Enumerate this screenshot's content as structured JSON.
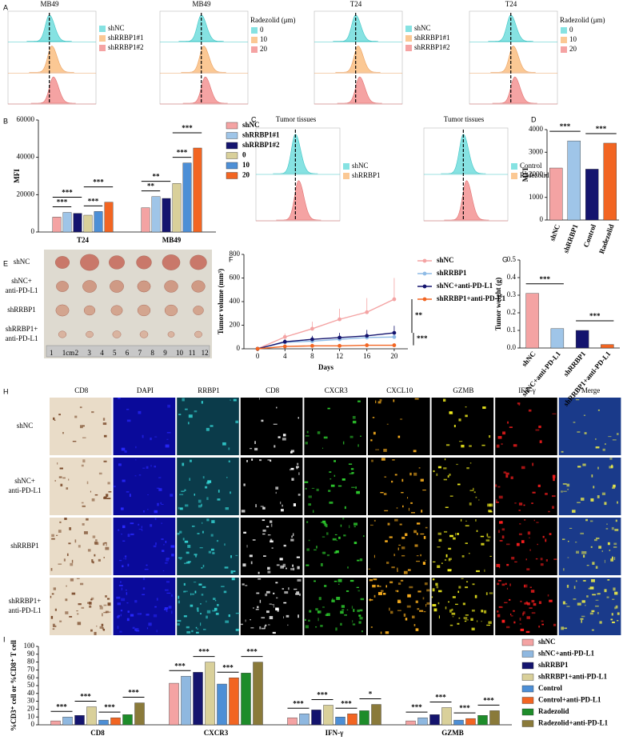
{
  "panel_labels": [
    "A",
    "B",
    "C",
    "D",
    "E",
    "F",
    "G",
    "H",
    "I"
  ],
  "flow_panels": [
    {
      "title": "MB49",
      "legend": [
        "shNC",
        "shRRBP1#1",
        "shRRBP1#2"
      ]
    },
    {
      "title": "MB49",
      "legend_title": "Radezolid (μm)",
      "legend": [
        "0",
        "10",
        "20"
      ]
    },
    {
      "title": "T24",
      "legend": [
        "shNC",
        "shRRBP1#1",
        "shRRBP1#2"
      ]
    },
    {
      "title": "T24",
      "legend_title": "Radezolid (μm)",
      "legend": [
        "0",
        "10",
        "20"
      ]
    }
  ],
  "tissue_panels": [
    {
      "title": "Tumor tissues",
      "legend": [
        "shNC",
        "shRRBP1"
      ]
    },
    {
      "title": "Tumor tissues",
      "legend": [
        "Control",
        "Radezolid"
      ]
    }
  ],
  "tumor_photo": {
    "rows": [
      [
        "shNC"
      ],
      [
        "shNC+",
        "anti-PD-L1"
      ],
      [
        "shRRBP1"
      ],
      [
        "shRRBP1+",
        "anti-PD-L1"
      ]
    ],
    "ruler_labels": [
      "1",
      "1cm",
      "2",
      "3",
      "4",
      "5",
      "6",
      "7",
      "8",
      "9",
      "10",
      "11",
      "12"
    ]
  },
  "if_grid": {
    "columns": [
      "CD8",
      "DAPI",
      "RRBP1",
      "CD8",
      "CXCR3",
      "CXCL10",
      "GZMB",
      "IFN-γ",
      "Merge"
    ],
    "rows": [
      [
        "shNC"
      ],
      [
        "shNC+",
        "anti-PD-L1"
      ],
      [
        "shRRBP1"
      ],
      [
        "shRRBP1+",
        "anti-PD-L1"
      ]
    ]
  },
  "chart_data": [
    {
      "type": "bar",
      "ylabel": "MFI",
      "categories": [
        "T24",
        "MB49"
      ],
      "series": [
        {
          "name": "shNC",
          "color": "#f4a3a3",
          "values": [
            8000,
            13000
          ]
        },
        {
          "name": "shRRBP1#1",
          "color": "#9fc5e8",
          "values": [
            10500,
            19000
          ]
        },
        {
          "name": "shRRBP1#2",
          "color": "#14146e",
          "values": [
            10000,
            18000
          ]
        },
        {
          "name": "0",
          "color": "#d9d09a",
          "values": [
            9000,
            26000
          ]
        },
        {
          "name": "10",
          "color": "#4d8fd6",
          "values": [
            11000,
            37000
          ]
        },
        {
          "name": "20",
          "color": "#f26522",
          "values": [
            16000,
            45000
          ]
        }
      ],
      "ylim": [
        0,
        60000
      ],
      "yticks": [
        0,
        20000,
        40000,
        60000
      ],
      "annotations": [
        "***",
        "***",
        "***",
        "***",
        "**",
        "**",
        "***",
        "***"
      ]
    },
    {
      "type": "bar",
      "ylabel": "MFI",
      "categories": [
        "shNC",
        "shRRBP1",
        "Control",
        "Radezolid"
      ],
      "values": [
        2300,
        3500,
        2250,
        3400
      ],
      "colors": [
        "#f4a3a3",
        "#9fc5e8",
        "#14146e",
        "#f26522"
      ],
      "ylim": [
        0,
        4000
      ],
      "yticks": [
        0,
        1000,
        2000,
        3000,
        4000
      ],
      "annotations": [
        "***",
        "***"
      ]
    },
    {
      "type": "line",
      "ylabel": "Tumor volume (mm³)",
      "xlabel": "Days",
      "x": [
        0,
        4,
        8,
        12,
        16,
        20
      ],
      "series": [
        {
          "name": "shNC",
          "color": "#f4a3a3",
          "values": [
            0,
            100,
            170,
            250,
            310,
            420
          ],
          "errors": [
            0,
            30,
            60,
            90,
            120,
            180
          ]
        },
        {
          "name": "shRRBP1",
          "color": "#8fbbe6",
          "values": [
            0,
            55,
            65,
            80,
            95,
            100
          ],
          "errors": [
            0,
            15,
            20,
            25,
            25,
            30
          ]
        },
        {
          "name": "shNC+anti-PD-L1",
          "color": "#14146e",
          "values": [
            0,
            60,
            80,
            95,
            110,
            135
          ],
          "errors": [
            0,
            20,
            30,
            40,
            50,
            60
          ]
        },
        {
          "name": "shRRBP1+anti-PD-L1",
          "color": "#f26522",
          "values": [
            0,
            20,
            25,
            25,
            30,
            30
          ],
          "errors": [
            0,
            10,
            10,
            10,
            10,
            10
          ]
        }
      ],
      "xlim": [
        -2,
        22
      ],
      "xticks": [
        0,
        4,
        8,
        12,
        16,
        20
      ],
      "ylim": [
        0,
        800
      ],
      "yticks": [
        0,
        200,
        400,
        600,
        800
      ],
      "annotations": [
        "**",
        "***"
      ]
    },
    {
      "type": "bar",
      "ylabel": "Tumor weight (g)",
      "categories": [
        "shNC",
        "shNC+anti-PD-L1",
        "shRRBP1",
        "shRRBP1+anti-PD-L1"
      ],
      "values": [
        0.31,
        0.11,
        0.1,
        0.02
      ],
      "colors": [
        "#f4a3a3",
        "#9fc5e8",
        "#14146e",
        "#f26522"
      ],
      "ylim": [
        0,
        0.5
      ],
      "yticks": [
        {
          "value": 0,
          "label": "0.0"
        },
        0.1,
        0.2,
        0.3,
        0.4,
        0.5
      ],
      "annotations": [
        "***",
        "***"
      ]
    },
    {
      "type": "bar",
      "ylabel": "%CD3⁺ cell or %CD8⁺ T cell",
      "categories": [
        "CD8",
        "CXCR3",
        "IFN-γ",
        "GZMB"
      ],
      "series": [
        {
          "name": "shNC",
          "color": "#f4a3a3",
          "values": [
            5,
            53,
            9,
            5
          ]
        },
        {
          "name": "shNC+anti-PD-L1",
          "color": "#8fb8e0",
          "values": [
            10,
            62,
            14,
            9
          ]
        },
        {
          "name": "shRRBP1",
          "color": "#14146e",
          "values": [
            12,
            67,
            19,
            13
          ]
        },
        {
          "name": "shRRBP1+anti-PD-L1",
          "color": "#d9d09a",
          "values": [
            23,
            80,
            25,
            22
          ]
        },
        {
          "name": "Control",
          "color": "#4d8fd6",
          "values": [
            6,
            52,
            10,
            6
          ]
        },
        {
          "name": "Control+anti-PD-L1",
          "color": "#f26522",
          "values": [
            9,
            60,
            14,
            8
          ]
        },
        {
          "name": "Radezolid",
          "color": "#1e8c2a",
          "values": [
            13,
            66,
            18,
            12
          ]
        },
        {
          "name": "Radezolid+anti-PD-L1",
          "color": "#8a7a3a",
          "values": [
            28,
            80,
            26,
            18
          ]
        }
      ],
      "ylim": [
        0,
        100
      ],
      "yticks": [
        0,
        10,
        20,
        30,
        40,
        50,
        60,
        70,
        80,
        90,
        100
      ],
      "annotations": [
        "***",
        "***",
        "***",
        "***",
        "***",
        "***",
        "***",
        "***",
        "***",
        "***",
        "***",
        "*",
        "***",
        "***",
        "***",
        "***"
      ]
    }
  ]
}
